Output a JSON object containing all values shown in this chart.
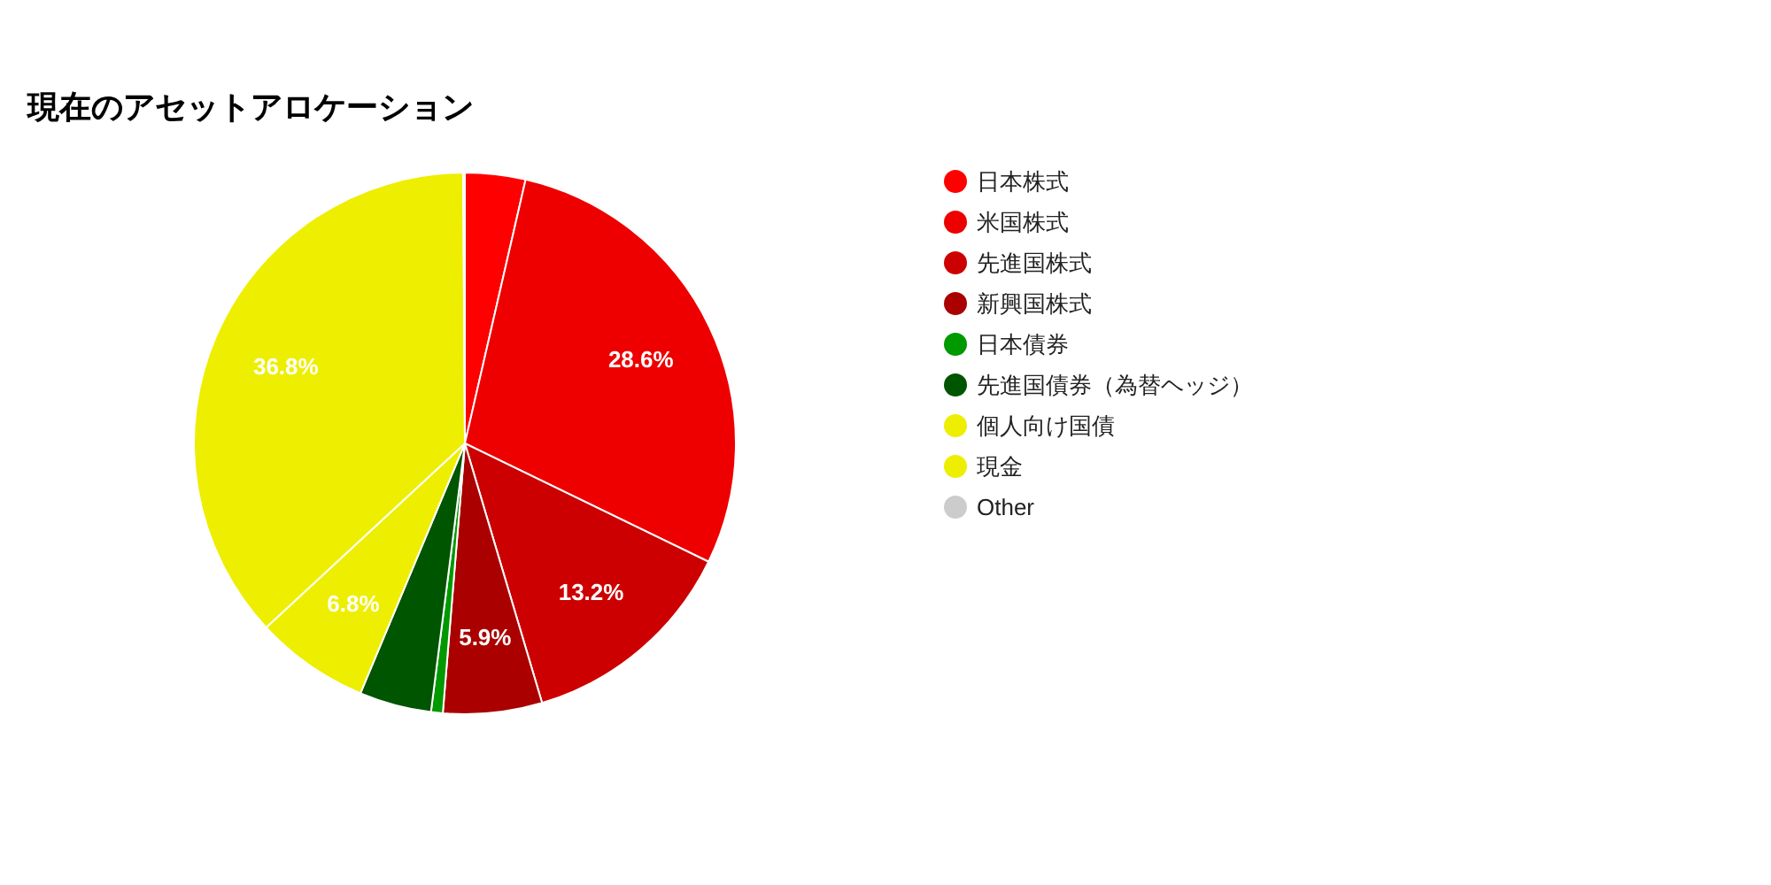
{
  "chart_data": {
    "type": "pie",
    "title": "現在のアセットアロケーション",
    "categories": [
      "日本株式",
      "米国株式",
      "先進国株式",
      "新興国株式",
      "日本債券",
      "先進国債券（為替ヘッジ）",
      "個人向け国債",
      "現金",
      "Other"
    ],
    "values": [
      3.6,
      28.6,
      13.2,
      5.9,
      0.7,
      4.3,
      6.8,
      36.8,
      0.1
    ],
    "colors": [
      "#ff0000",
      "#ee0000",
      "#cc0000",
      "#aa0000",
      "#009900",
      "#005500",
      "#eeee00",
      "#eeee00",
      "#cccccc"
    ],
    "value_labels": [
      null,
      "28.6%",
      "13.2%",
      "5.9%",
      null,
      null,
      "6.8%",
      "36.8%",
      null
    ],
    "legend": "right"
  }
}
